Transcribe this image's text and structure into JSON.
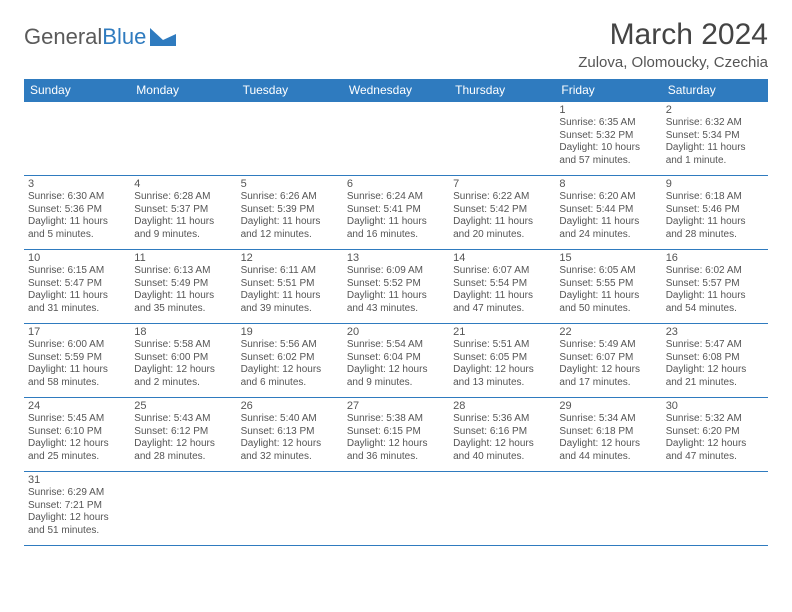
{
  "brand": {
    "part1": "General",
    "part2": "Blue"
  },
  "title": "March 2024",
  "location": "Zulova, Olomoucky, Czechia",
  "colors": {
    "header_bg": "#2f7bbf",
    "border": "#2f7bbf",
    "text": "#555555"
  },
  "weekdays": [
    "Sunday",
    "Monday",
    "Tuesday",
    "Wednesday",
    "Thursday",
    "Friday",
    "Saturday"
  ],
  "weeks": [
    [
      null,
      null,
      null,
      null,
      null,
      {
        "n": "1",
        "sunrise": "Sunrise: 6:35 AM",
        "sunset": "Sunset: 5:32 PM",
        "daylight": "Daylight: 10 hours and 57 minutes."
      },
      {
        "n": "2",
        "sunrise": "Sunrise: 6:32 AM",
        "sunset": "Sunset: 5:34 PM",
        "daylight": "Daylight: 11 hours and 1 minute."
      }
    ],
    [
      {
        "n": "3",
        "sunrise": "Sunrise: 6:30 AM",
        "sunset": "Sunset: 5:36 PM",
        "daylight": "Daylight: 11 hours and 5 minutes."
      },
      {
        "n": "4",
        "sunrise": "Sunrise: 6:28 AM",
        "sunset": "Sunset: 5:37 PM",
        "daylight": "Daylight: 11 hours and 9 minutes."
      },
      {
        "n": "5",
        "sunrise": "Sunrise: 6:26 AM",
        "sunset": "Sunset: 5:39 PM",
        "daylight": "Daylight: 11 hours and 12 minutes."
      },
      {
        "n": "6",
        "sunrise": "Sunrise: 6:24 AM",
        "sunset": "Sunset: 5:41 PM",
        "daylight": "Daylight: 11 hours and 16 minutes."
      },
      {
        "n": "7",
        "sunrise": "Sunrise: 6:22 AM",
        "sunset": "Sunset: 5:42 PM",
        "daylight": "Daylight: 11 hours and 20 minutes."
      },
      {
        "n": "8",
        "sunrise": "Sunrise: 6:20 AM",
        "sunset": "Sunset: 5:44 PM",
        "daylight": "Daylight: 11 hours and 24 minutes."
      },
      {
        "n": "9",
        "sunrise": "Sunrise: 6:18 AM",
        "sunset": "Sunset: 5:46 PM",
        "daylight": "Daylight: 11 hours and 28 minutes."
      }
    ],
    [
      {
        "n": "10",
        "sunrise": "Sunrise: 6:15 AM",
        "sunset": "Sunset: 5:47 PM",
        "daylight": "Daylight: 11 hours and 31 minutes."
      },
      {
        "n": "11",
        "sunrise": "Sunrise: 6:13 AM",
        "sunset": "Sunset: 5:49 PM",
        "daylight": "Daylight: 11 hours and 35 minutes."
      },
      {
        "n": "12",
        "sunrise": "Sunrise: 6:11 AM",
        "sunset": "Sunset: 5:51 PM",
        "daylight": "Daylight: 11 hours and 39 minutes."
      },
      {
        "n": "13",
        "sunrise": "Sunrise: 6:09 AM",
        "sunset": "Sunset: 5:52 PM",
        "daylight": "Daylight: 11 hours and 43 minutes."
      },
      {
        "n": "14",
        "sunrise": "Sunrise: 6:07 AM",
        "sunset": "Sunset: 5:54 PM",
        "daylight": "Daylight: 11 hours and 47 minutes."
      },
      {
        "n": "15",
        "sunrise": "Sunrise: 6:05 AM",
        "sunset": "Sunset: 5:55 PM",
        "daylight": "Daylight: 11 hours and 50 minutes."
      },
      {
        "n": "16",
        "sunrise": "Sunrise: 6:02 AM",
        "sunset": "Sunset: 5:57 PM",
        "daylight": "Daylight: 11 hours and 54 minutes."
      }
    ],
    [
      {
        "n": "17",
        "sunrise": "Sunrise: 6:00 AM",
        "sunset": "Sunset: 5:59 PM",
        "daylight": "Daylight: 11 hours and 58 minutes."
      },
      {
        "n": "18",
        "sunrise": "Sunrise: 5:58 AM",
        "sunset": "Sunset: 6:00 PM",
        "daylight": "Daylight: 12 hours and 2 minutes."
      },
      {
        "n": "19",
        "sunrise": "Sunrise: 5:56 AM",
        "sunset": "Sunset: 6:02 PM",
        "daylight": "Daylight: 12 hours and 6 minutes."
      },
      {
        "n": "20",
        "sunrise": "Sunrise: 5:54 AM",
        "sunset": "Sunset: 6:04 PM",
        "daylight": "Daylight: 12 hours and 9 minutes."
      },
      {
        "n": "21",
        "sunrise": "Sunrise: 5:51 AM",
        "sunset": "Sunset: 6:05 PM",
        "daylight": "Daylight: 12 hours and 13 minutes."
      },
      {
        "n": "22",
        "sunrise": "Sunrise: 5:49 AM",
        "sunset": "Sunset: 6:07 PM",
        "daylight": "Daylight: 12 hours and 17 minutes."
      },
      {
        "n": "23",
        "sunrise": "Sunrise: 5:47 AM",
        "sunset": "Sunset: 6:08 PM",
        "daylight": "Daylight: 12 hours and 21 minutes."
      }
    ],
    [
      {
        "n": "24",
        "sunrise": "Sunrise: 5:45 AM",
        "sunset": "Sunset: 6:10 PM",
        "daylight": "Daylight: 12 hours and 25 minutes."
      },
      {
        "n": "25",
        "sunrise": "Sunrise: 5:43 AM",
        "sunset": "Sunset: 6:12 PM",
        "daylight": "Daylight: 12 hours and 28 minutes."
      },
      {
        "n": "26",
        "sunrise": "Sunrise: 5:40 AM",
        "sunset": "Sunset: 6:13 PM",
        "daylight": "Daylight: 12 hours and 32 minutes."
      },
      {
        "n": "27",
        "sunrise": "Sunrise: 5:38 AM",
        "sunset": "Sunset: 6:15 PM",
        "daylight": "Daylight: 12 hours and 36 minutes."
      },
      {
        "n": "28",
        "sunrise": "Sunrise: 5:36 AM",
        "sunset": "Sunset: 6:16 PM",
        "daylight": "Daylight: 12 hours and 40 minutes."
      },
      {
        "n": "29",
        "sunrise": "Sunrise: 5:34 AM",
        "sunset": "Sunset: 6:18 PM",
        "daylight": "Daylight: 12 hours and 44 minutes."
      },
      {
        "n": "30",
        "sunrise": "Sunrise: 5:32 AM",
        "sunset": "Sunset: 6:20 PM",
        "daylight": "Daylight: 12 hours and 47 minutes."
      }
    ],
    [
      {
        "n": "31",
        "sunrise": "Sunrise: 6:29 AM",
        "sunset": "Sunset: 7:21 PM",
        "daylight": "Daylight: 12 hours and 51 minutes."
      },
      null,
      null,
      null,
      null,
      null,
      null
    ]
  ]
}
